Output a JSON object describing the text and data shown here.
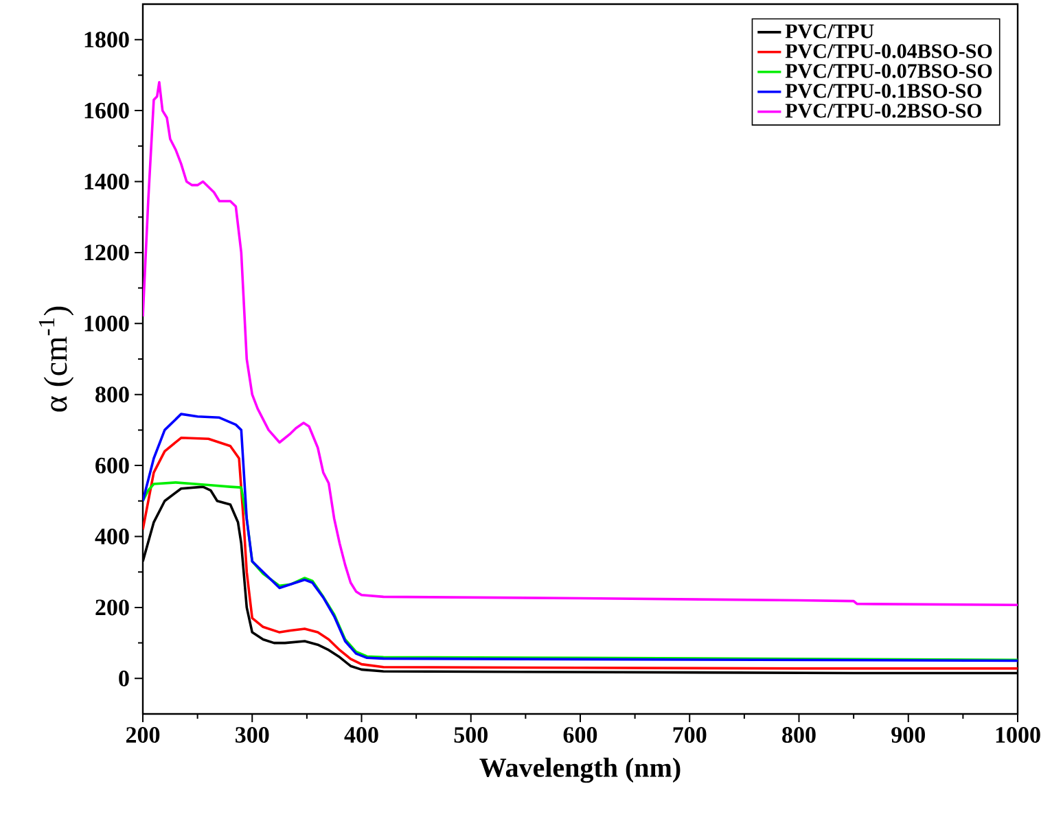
{
  "chart_data": {
    "type": "line",
    "xlabel": "Wavelength (nm)",
    "ylabel": "α (cm$^{-1}$)",
    "xlim": [
      200,
      1000
    ],
    "ylim": [
      -100,
      1900
    ],
    "xticks": [
      200,
      300,
      400,
      500,
      600,
      700,
      800,
      900,
      1000
    ],
    "yticks": [
      0,
      200,
      400,
      600,
      800,
      1000,
      1200,
      1400,
      1600,
      1800
    ],
    "grid": false,
    "legend": "top right",
    "marker": "none",
    "line_style": "solid",
    "series": [
      {
        "name": "PVC/TPU",
        "color": "#000000",
        "x": [
          200,
          210,
          220,
          235,
          255,
          262,
          268,
          280,
          287,
          290,
          295,
          300,
          310,
          320,
          330,
          348,
          360,
          370,
          380,
          390,
          400,
          420,
          600,
          850,
          1000
        ],
        "values": [
          330,
          440,
          500,
          535,
          540,
          530,
          500,
          490,
          440,
          380,
          200,
          130,
          110,
          100,
          100,
          105,
          95,
          80,
          60,
          35,
          25,
          20,
          18,
          15,
          15
        ]
      },
      {
        "name": "PVC/TPU-0.04BSO-SO",
        "color": "#ff0000",
        "x": [
          200,
          210,
          220,
          235,
          260,
          280,
          288,
          292,
          295,
          300,
          310,
          325,
          335,
          348,
          360,
          370,
          380,
          390,
          400,
          420,
          600,
          800,
          1000
        ],
        "values": [
          420,
          580,
          640,
          678,
          675,
          655,
          620,
          450,
          300,
          170,
          145,
          130,
          135,
          140,
          130,
          110,
          80,
          55,
          40,
          32,
          30,
          28,
          28
        ]
      },
      {
        "name": "PVC/TPU-0.07BSO-SO",
        "color": "#00ee00",
        "x": [
          200,
          205,
          210,
          230,
          260,
          280,
          290,
          295,
          300,
          310,
          325,
          335,
          348,
          355,
          365,
          375,
          385,
          395,
          405,
          420,
          600,
          800,
          1000
        ],
        "values": [
          500,
          530,
          548,
          552,
          545,
          540,
          538,
          450,
          330,
          295,
          261,
          265,
          283,
          275,
          230,
          180,
          110,
          75,
          62,
          60,
          58,
          55,
          52
        ]
      },
      {
        "name": "PVC/TPU-0.1BSO-SO",
        "color": "#0000ff",
        "x": [
          200,
          210,
          220,
          235,
          250,
          270,
          285,
          290,
          295,
          300,
          310,
          325,
          335,
          348,
          355,
          365,
          375,
          385,
          395,
          405,
          420,
          600,
          800,
          1000
        ],
        "values": [
          500,
          620,
          700,
          745,
          738,
          735,
          715,
          700,
          450,
          330,
          300,
          255,
          265,
          278,
          270,
          228,
          175,
          105,
          70,
          58,
          56,
          54,
          52,
          50
        ]
      },
      {
        "name": "PVC/TPU-0.2BSO-SO",
        "color": "#ff00ff",
        "x": [
          200,
          205,
          210,
          213,
          215,
          218,
          222,
          225,
          230,
          235,
          240,
          245,
          250,
          255,
          260,
          265,
          270,
          280,
          285,
          290,
          295,
          300,
          305,
          315,
          325,
          335,
          340,
          347,
          352,
          360,
          365,
          370,
          375,
          380,
          385,
          390,
          395,
          400,
          420,
          600,
          800,
          850,
          853,
          1000
        ],
        "values": [
          1020,
          1350,
          1630,
          1640,
          1680,
          1600,
          1580,
          1520,
          1490,
          1450,
          1400,
          1390,
          1390,
          1400,
          1385,
          1370,
          1345,
          1345,
          1330,
          1200,
          900,
          800,
          760,
          700,
          665,
          690,
          705,
          720,
          710,
          650,
          580,
          550,
          450,
          380,
          320,
          270,
          245,
          235,
          230,
          226,
          220,
          218,
          210,
          207
        ]
      }
    ]
  }
}
